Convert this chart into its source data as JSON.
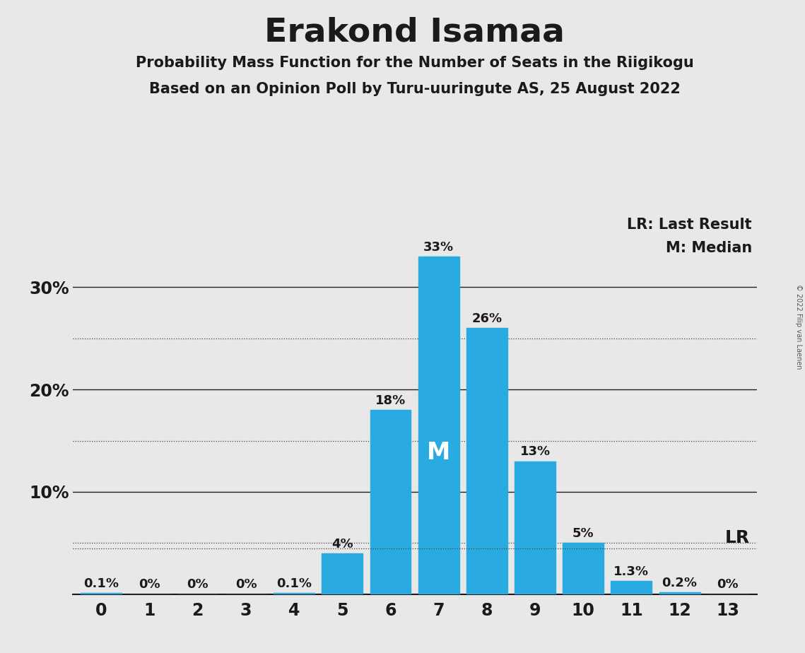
{
  "title": "Erakond Isamaa",
  "subtitle1": "Probability Mass Function for the Number of Seats in the Riigikogu",
  "subtitle2": "Based on an Opinion Poll by Turu-uuringute AS, 25 August 2022",
  "copyright": "© 2022 Filip van Laenen",
  "categories": [
    0,
    1,
    2,
    3,
    4,
    5,
    6,
    7,
    8,
    9,
    10,
    11,
    12,
    13
  ],
  "values": [
    0.1,
    0.0,
    0.0,
    0.0,
    0.1,
    4.0,
    18.0,
    33.0,
    26.0,
    13.0,
    5.0,
    1.3,
    0.2,
    0.0
  ],
  "bar_color": "#29ABE2",
  "background_color": "#E8E8E8",
  "median": 7,
  "last_result": 10,
  "lr_line_value": 4.5,
  "solid_lines": [
    10,
    20,
    30
  ],
  "dotted_lines": [
    5,
    15,
    25
  ],
  "title_fontsize": 34,
  "subtitle_fontsize": 15,
  "bar_label_fontsize": 13,
  "axis_tick_fontsize": 17,
  "legend_fontsize": 15,
  "median_label_fontsize": 24,
  "lr_label_fontsize": 18,
  "copyright_fontsize": 7
}
